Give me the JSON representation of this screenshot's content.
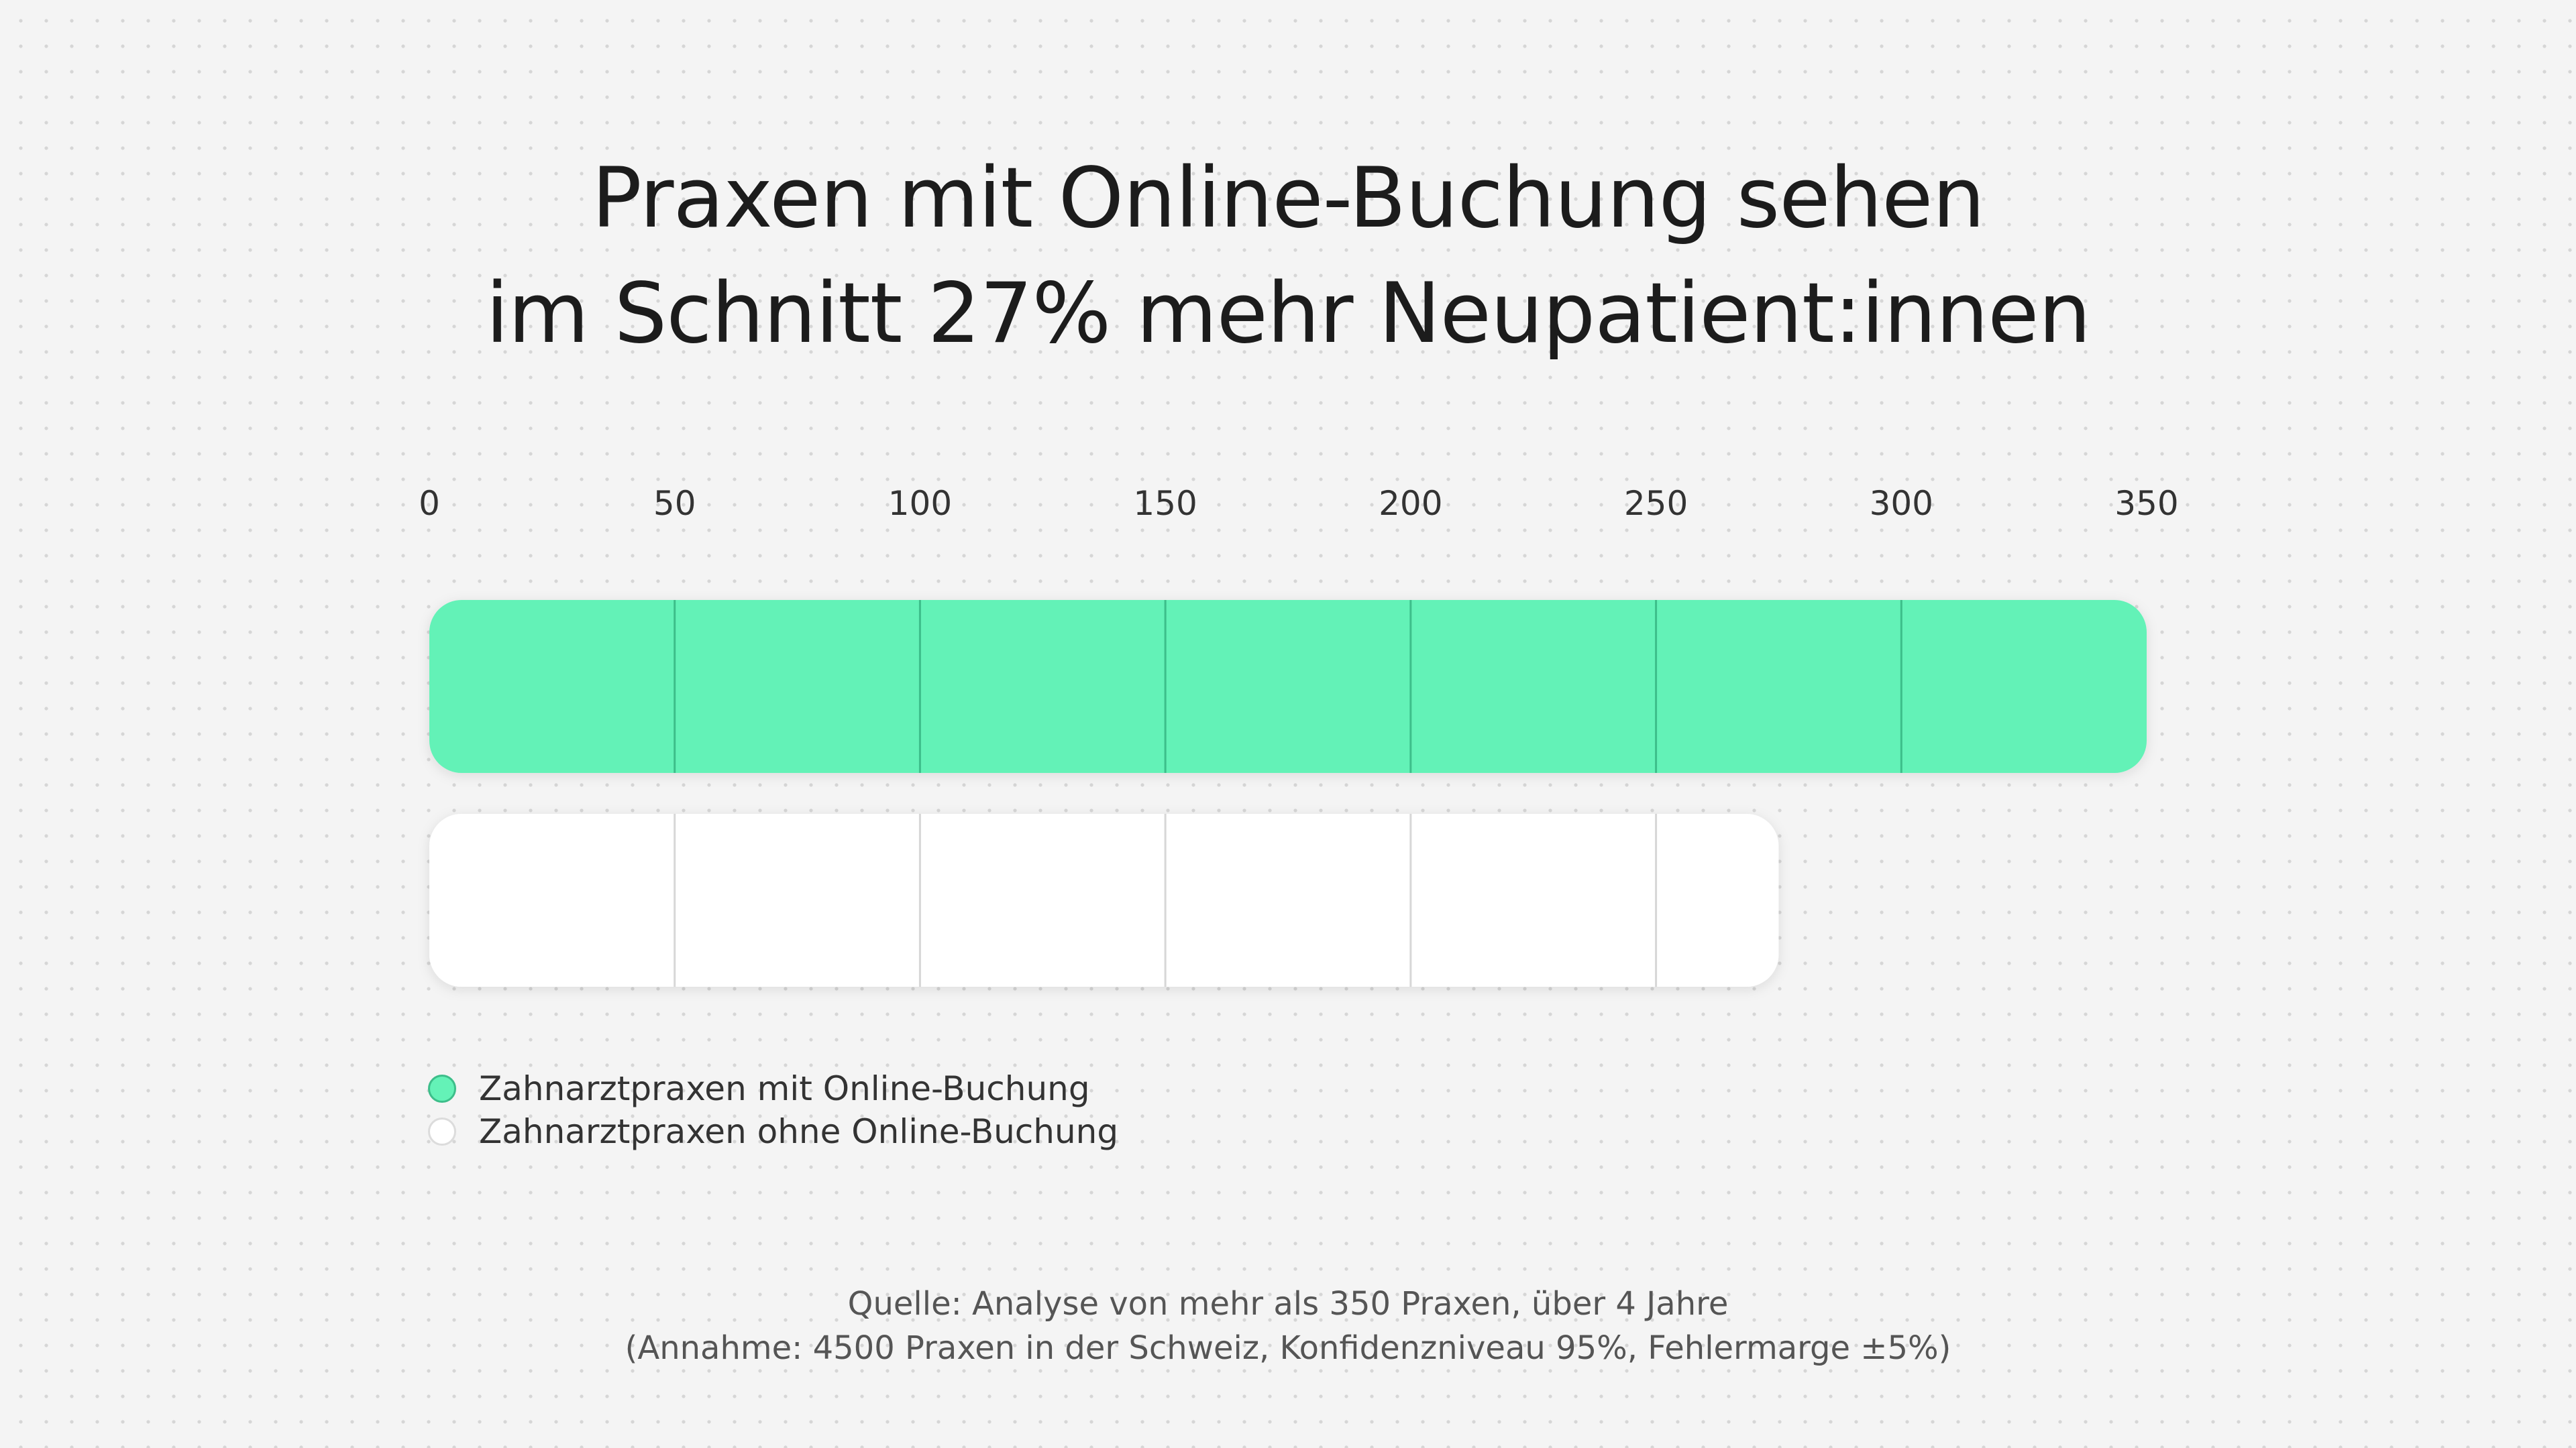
{
  "title": {
    "line1": "Praxen mit Online-Buchung sehen",
    "line2": "im Schnitt 27% mehr Neupatient:innen"
  },
  "chart_data": {
    "type": "bar",
    "orientation": "horizontal",
    "title": "Praxen mit Online-Buchung sehen im Schnitt 27% mehr Neupatient:innen",
    "xlim": [
      0,
      350
    ],
    "ticks": [
      0,
      50,
      100,
      150,
      200,
      250,
      300,
      350
    ],
    "tick_position": "top",
    "grid": true,
    "legend_position": "bottom-left",
    "series": [
      {
        "name": "Zahnarztpraxen mit Online-Buchung",
        "value": 350,
        "color": "#64f2b7",
        "divider": "#3dbe8a",
        "legend_border": "#3dbe8a"
      },
      {
        "name": "Zahnarztpraxen ohne Online-Buchung",
        "value": 275,
        "color": "#ffffff",
        "divider": "#d7d7d7",
        "legend_border": "#dcdcdc"
      }
    ]
  },
  "source": {
    "line1": "Quelle: Analyse von mehr als 350 Praxen, über 4 Jahre",
    "line2": "(Annahme: 4500 Praxen in der Schweiz, Konfidenzniveau 95%, Fehlermarge ±5%)"
  }
}
